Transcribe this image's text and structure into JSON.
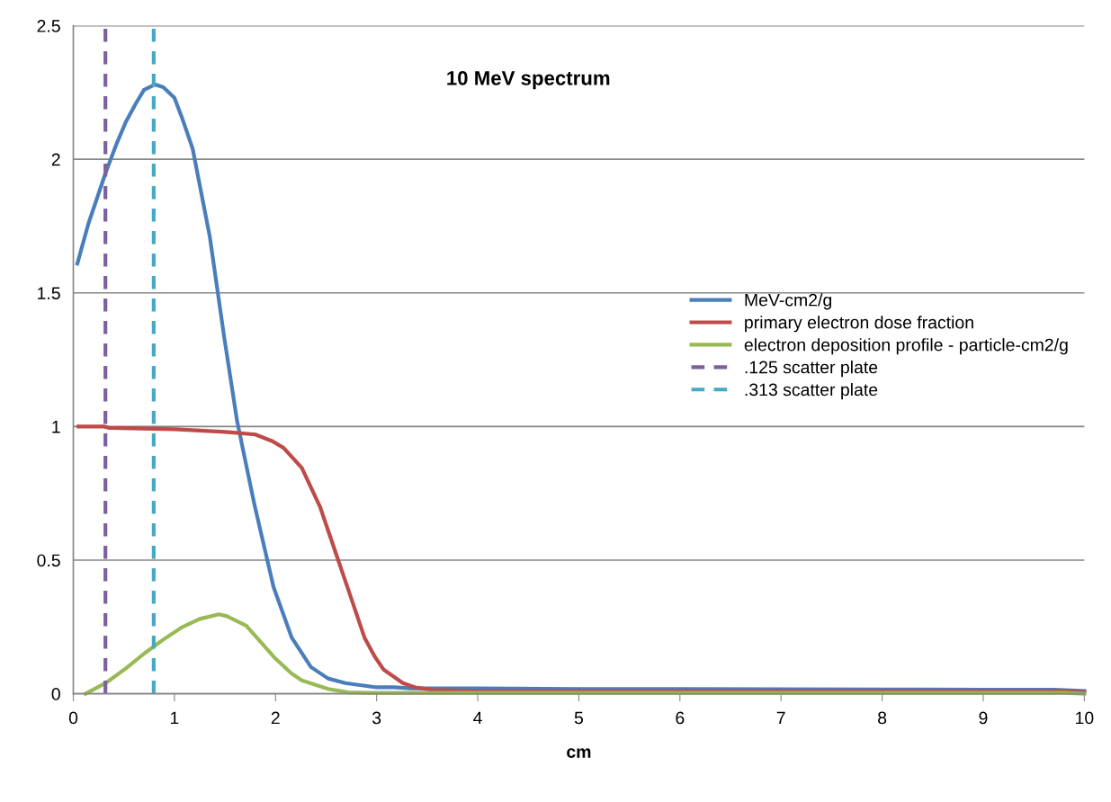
{
  "chart_data": {
    "type": "line",
    "title": "10 MeV spectrum",
    "xlabel": "cm",
    "xlim": [
      0,
      10
    ],
    "xticks": [
      0,
      1,
      2,
      3,
      4,
      5,
      6,
      7,
      8,
      9,
      10
    ],
    "ylim": [
      0,
      2.5
    ],
    "yticks": [
      0,
      0.5,
      1,
      1.5,
      2,
      2.5
    ],
    "grid": "y",
    "legend": "right",
    "marker": "none",
    "line_style": "solid",
    "series": [
      {
        "name": "MeV-cm2/g",
        "color": "#4a7ebb",
        "x": [
          0.04,
          0.15,
          0.32,
          0.43,
          0.52,
          0.62,
          0.7,
          0.81,
          0.89,
          1.0,
          1.08,
          1.18,
          1.35,
          1.49,
          1.62,
          1.79,
          1.98,
          2.16,
          2.35,
          2.52,
          2.69,
          3.0,
          3.17,
          3.34,
          4,
          5,
          6,
          7,
          8,
          9,
          9.7,
          10
        ],
        "values": [
          1.61,
          1.76,
          1.95,
          2.06,
          2.14,
          2.21,
          2.26,
          2.28,
          2.27,
          2.23,
          2.15,
          2.04,
          1.71,
          1.34,
          1.02,
          0.71,
          0.4,
          0.21,
          0.1,
          0.057,
          0.04,
          0.024,
          0.024,
          0.02,
          0.02,
          0.018,
          0.018,
          0.017,
          0.016,
          0.015,
          0.015,
          0.01
        ]
      },
      {
        "name": "primary electron dose fraction",
        "color": "#be4b48",
        "x": [
          0.05,
          0.3,
          0.35,
          1.0,
          1.5,
          1.8,
          1.97,
          2.08,
          2.26,
          2.44,
          2.62,
          2.71,
          2.88,
          2.98,
          3.07,
          3.26,
          3.38,
          3.55,
          4,
          6,
          8,
          9.8,
          10
        ],
        "values": [
          1.0,
          1.0,
          0.995,
          0.99,
          0.98,
          0.97,
          0.945,
          0.92,
          0.845,
          0.7,
          0.5,
          0.4,
          0.21,
          0.14,
          0.09,
          0.04,
          0.024,
          0.014,
          0.01,
          0.01,
          0.01,
          0.01,
          0.005
        ]
      },
      {
        "name": "electron deposition profile - particle-cm2/g",
        "color": "#98b954",
        "x": [
          0.12,
          0.22,
          0.32,
          0.52,
          0.7,
          0.88,
          1.08,
          1.25,
          1.44,
          1.52,
          1.71,
          1.99,
          2.16,
          2.26,
          2.52,
          2.72,
          2.9,
          4,
          6,
          8,
          9.8,
          10
        ],
        "values": [
          0,
          0.02,
          0.04,
          0.095,
          0.15,
          0.2,
          0.25,
          0.28,
          0.297,
          0.29,
          0.255,
          0.135,
          0.075,
          0.05,
          0.018,
          0.005,
          0.003,
          0.003,
          0.003,
          0.003,
          0.003,
          0
        ]
      },
      {
        "name": ".125 scatter plate",
        "color": "#7d60a0",
        "line_style": "dashed",
        "x": [
          0.3175,
          0.3175
        ],
        "values": [
          0,
          2.5
        ]
      },
      {
        "name": ".313 scatter plate",
        "color": "#46aac5",
        "line_style": "dashed",
        "x": [
          0.795,
          0.795
        ],
        "values": [
          0,
          2.5
        ]
      }
    ]
  }
}
